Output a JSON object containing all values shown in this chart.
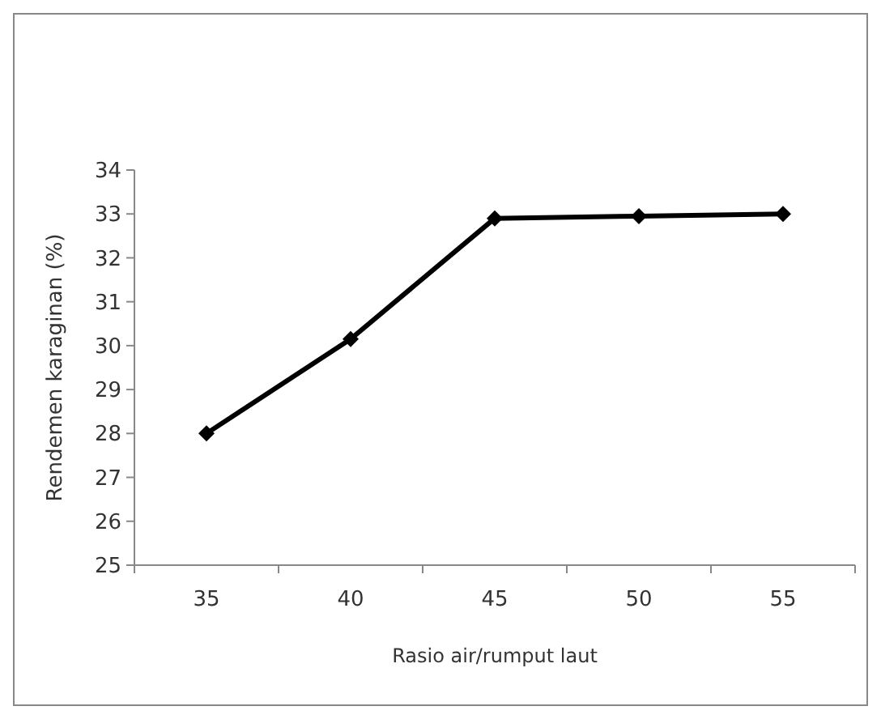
{
  "chart_data": {
    "type": "line",
    "xlabel": "Rasio air/rumput laut",
    "ylabel": "Rendemen karaginan (%)",
    "categories": [
      "35",
      "40",
      "45",
      "50",
      "55"
    ],
    "series": [
      {
        "color": "#000000",
        "values": [
          28.0,
          30.15,
          32.9,
          32.95,
          33.0
        ]
      }
    ],
    "ylim": [
      25,
      34
    ],
    "yticks": [
      25,
      26,
      27,
      28,
      29,
      30,
      31,
      32,
      33,
      34
    ],
    "marker": "diamond",
    "line_style": "solid"
  }
}
